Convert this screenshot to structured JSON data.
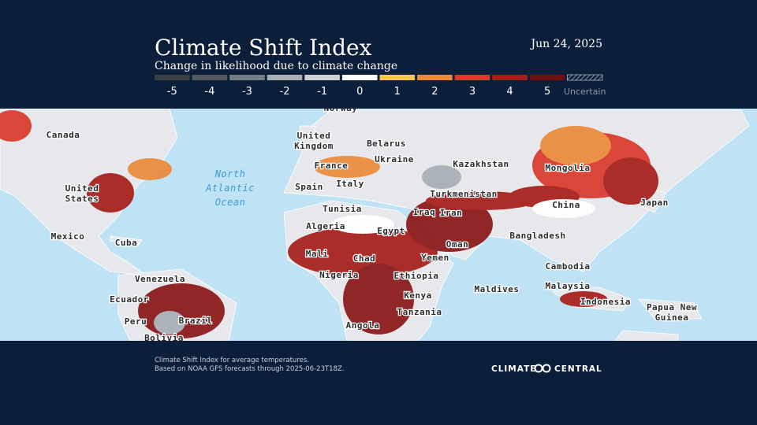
{
  "header": {
    "title": "Climate Shift Index",
    "subtitle": "Change in likelihood due to climate change",
    "date": "Jun 24, 2025"
  },
  "legend": [
    {
      "value": -5,
      "color": "#3a3f45"
    },
    {
      "value": -4,
      "color": "#535a62"
    },
    {
      "value": -3,
      "color": "#737c86"
    },
    {
      "value": -2,
      "color": "#a7aeb6"
    },
    {
      "value": -1,
      "color": "#ccd1d6"
    },
    {
      "value": 0,
      "color": "#ffffff"
    },
    {
      "value": 1,
      "color": "#f5c453"
    },
    {
      "value": 2,
      "color": "#ec8a3a"
    },
    {
      "value": 3,
      "color": "#d9392b"
    },
    {
      "value": 4,
      "color": "#a51e1a"
    },
    {
      "value": 5,
      "color": "#6e1010"
    },
    {
      "label": "Uncertain"
    }
  ],
  "map_labels": [
    "Norway",
    "Canada",
    [
      "United",
      "Kingdom"
    ],
    "Belarus",
    "Ukraine",
    "Kazakhstan",
    "Mongolia",
    "France",
    "Spain",
    "Italy",
    "Turkmenistan",
    "China",
    "Japan",
    [
      "North",
      "Atlantic",
      "Ocean"
    ],
    [
      "United",
      "States"
    ],
    "Tunisia",
    "Iraq",
    "Iran",
    "Algeria",
    "Egypt",
    "Bangladesh",
    "Mexico",
    "Cuba",
    "Oman",
    "Mali",
    "Chad",
    "Yemen",
    "Cambodia",
    "Nigeria",
    "Ethiopia",
    "Venezuela",
    "Maldives",
    "Malaysia",
    "Kenya",
    "Ecuador",
    "Indonesia",
    [
      "Papua New",
      "Guinea"
    ],
    "Peru",
    "Brazil",
    "Tanzania",
    "Angola",
    "Bolivia"
  ],
  "footer": {
    "note_lines": [
      "Climate Shift Index for average temperatures.",
      "Based on NOAA GFS forecasts through 2025-06-23T18Z."
    ],
    "logo": [
      "CLIMATE",
      "CENTRAL"
    ]
  }
}
